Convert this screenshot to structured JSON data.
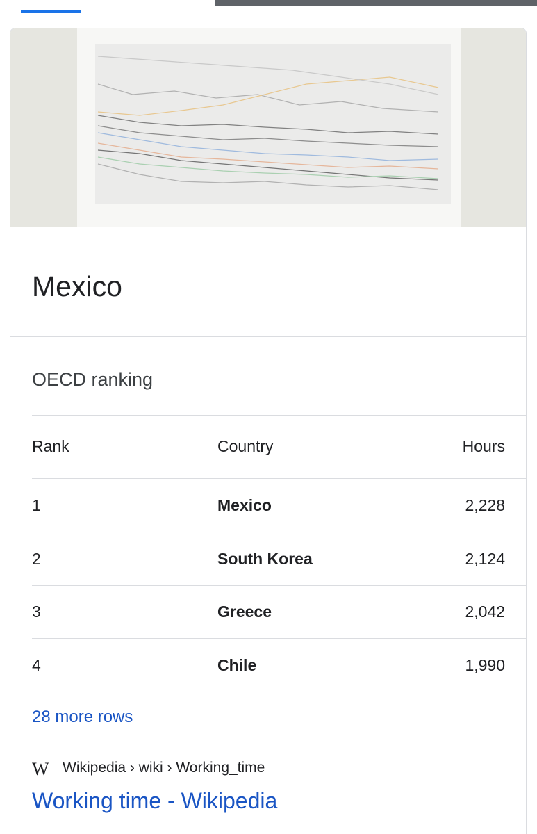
{
  "card": {
    "title": "Mexico",
    "table": {
      "caption": "OECD ranking",
      "headers": [
        "Rank",
        "Country",
        "Hours"
      ],
      "rows": [
        [
          "1",
          "Mexico",
          "2,228"
        ],
        [
          "2",
          "South Korea",
          "2,124"
        ],
        [
          "3",
          "Greece",
          "2,042"
        ],
        [
          "4",
          "Chile",
          "1,990"
        ]
      ]
    },
    "more": "28 more rows",
    "source": {
      "logo": "W",
      "breadcrumb": "Wikipedia › wiki › Working_time",
      "link": "Working time - Wikipedia"
    }
  }
}
